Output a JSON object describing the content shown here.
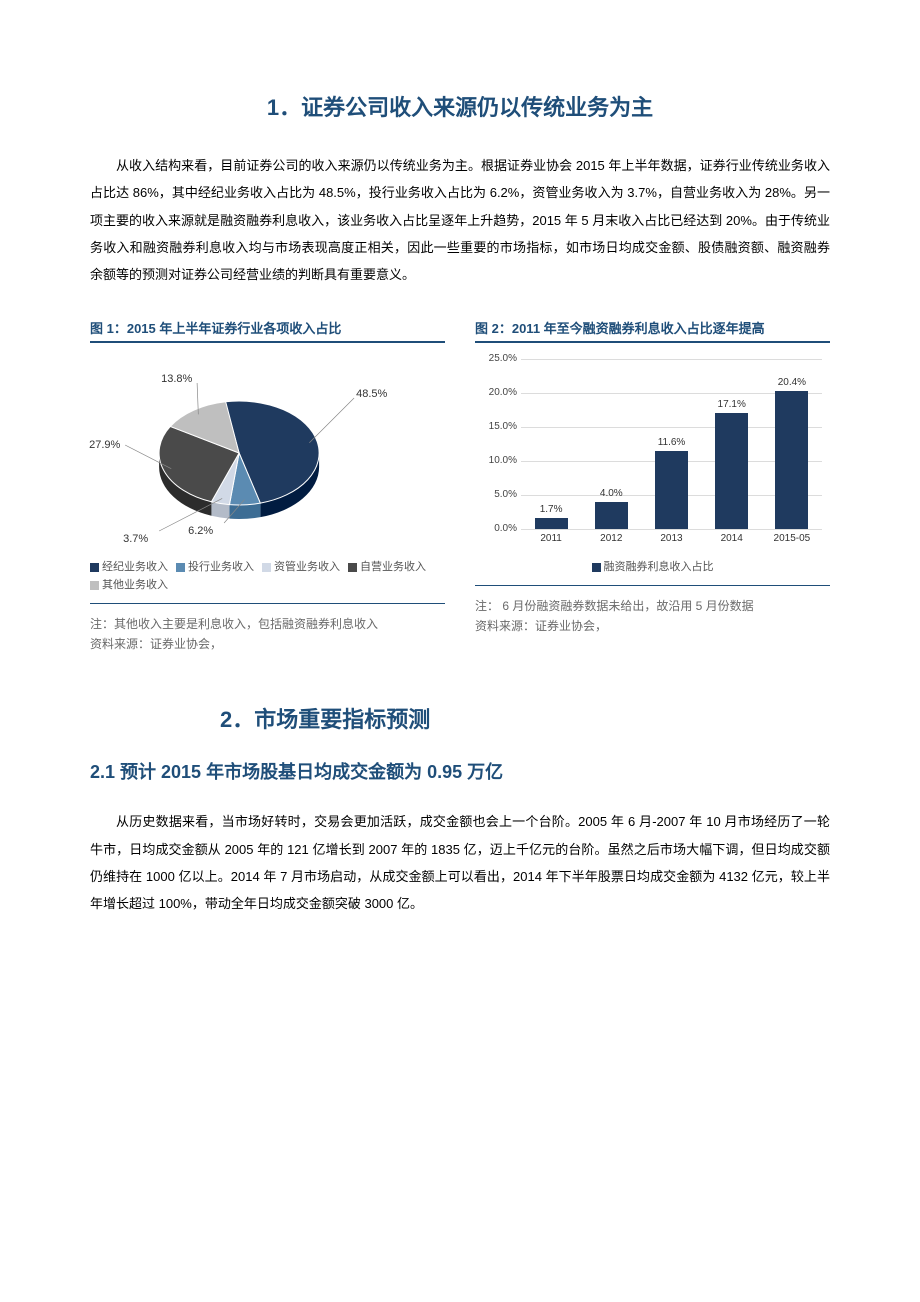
{
  "section1": {
    "heading": "1．证券公司收入来源仍以传统业务为主",
    "body": "从收入结构来看，目前证券公司的收入来源仍以传统业务为主。根据证券业协会 2015 年上半年数据，证券行业传统业务收入占比达 86%，其中经纪业务收入占比为 48.5%，投行业务收入占比为 6.2%，资管业务收入为 3.7%，自营业务收入为 28%。另一项主要的收入来源就是融资融券利息收入，该业务收入占比呈逐年上升趋势，2015 年 5 月末收入占比已经达到 20%。由于传统业务收入和融资融券利息收入均与市场表现高度正相关，因此一些重要的市场指标，如市场日均成交金额、股债融资额、融资融券余额等的预测对证券公司经营业绩的判断具有重要意义。"
  },
  "chart1": {
    "title": "图 1：2015 年上半年证券行业各项收入占比",
    "type": "pie",
    "slices": [
      {
        "label": "经纪业务收入",
        "value": 48.5,
        "display": "48.5%",
        "color": "#1f3a5f"
      },
      {
        "label": "投行业务收入",
        "value": 6.2,
        "display": "6.2%",
        "color": "#5b8bb2"
      },
      {
        "label": "资管业务收入",
        "value": 3.7,
        "display": "3.7%",
        "color": "#d1d9e6"
      },
      {
        "label": "自营业务收入",
        "value": 27.9,
        "display": "27.9%",
        "color": "#4a4a4a"
      },
      {
        "label": "其他业务收入",
        "value": 13.8,
        "display": "13.8%",
        "color": "#bfbfbf"
      }
    ],
    "legend_items": [
      "经纪业务收入",
      "投行业务收入",
      "资管业务收入",
      "自营业务收入",
      "其他业务收入"
    ],
    "note1": "注：其他收入主要是利息收入，包括融资融券利息收入",
    "note2": "资料来源：证券业协会，"
  },
  "chart2": {
    "title": "图 2：2011 年至今融资融券利息收入占比逐年提高",
    "type": "bar",
    "categories": [
      "2011",
      "2012",
      "2013",
      "2014",
      "2015-05"
    ],
    "values": [
      1.7,
      4.0,
      11.6,
      17.1,
      20.4
    ],
    "value_labels": [
      "1.7%",
      "4.0%",
      "11.6%",
      "17.1%",
      "20.4%"
    ],
    "bar_color": "#1f3a5f",
    "ylim_max": 25,
    "ytick_step": 5,
    "ytick_labels": [
      "0.0%",
      "5.0%",
      "10.0%",
      "15.0%",
      "20.0%",
      "25.0%"
    ],
    "grid_color": "#dcdcdc",
    "legend_label": "融资融券利息收入占比",
    "note1": "注： 6 月份融资融券数据未给出，故沿用 5 月份数据",
    "note2": "资料来源：证券业协会，"
  },
  "section2": {
    "heading": "2．市场重要指标预测",
    "sub_heading": "2.1 预计 2015 年市场股基日均成交金额为 0.95 万亿",
    "body": "从历史数据来看，当市场好转时，交易会更加活跃，成交金额也会上一个台阶。2005 年 6 月-2007 年 10 月市场经历了一轮牛市，日均成交金额从 2005 年的 121 亿增长到 2007 年的 1835 亿，迈上千亿元的台阶。虽然之后市场大幅下调，但日均成交额仍维持在 1000 亿以上。2014 年 7 月市场启动，从成交金额上可以看出，2014 年下半年股票日均成交金额为 4132 亿元，较上半年增长超过 100%，带动全年日均成交金额突破 3000 亿。"
  }
}
